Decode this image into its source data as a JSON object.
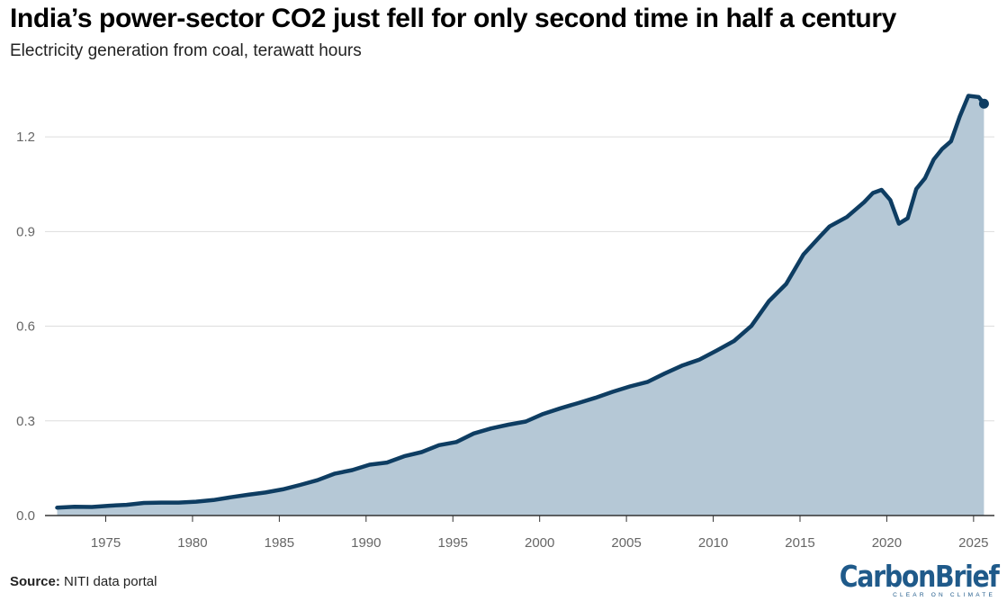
{
  "header": {
    "title": "India’s power-sector CO2 just fell for only second time in half a century",
    "subtitle": "Electricity generation from coal, terawatt hours"
  },
  "footer": {
    "source_label": "Source:",
    "source_text": "NITI data portal",
    "logo_text": "CarbonBrief",
    "logo_tagline": "CLEAR ON CLIMATE"
  },
  "colors": {
    "line": "#0e3d62",
    "area": "#b5c8d6",
    "grid": "#dddddd",
    "axis": "#333333"
  },
  "chart_data": {
    "type": "area",
    "title": "India’s power-sector CO2 just fell for only second time in half a century",
    "subtitle": "Electricity generation from coal, terawatt hours",
    "xlabel": "",
    "ylabel": "",
    "xlim": [
      1971.5,
      2026.2
    ],
    "ylim": [
      0,
      1.36
    ],
    "grid": true,
    "legend": "none",
    "y_ticks": [
      {
        "value": 0,
        "label": "0.0"
      },
      {
        "value": 0.3,
        "label": "0.3"
      },
      {
        "value": 0.6,
        "label": "0.6"
      },
      {
        "value": 0.9,
        "label": "0.9"
      },
      {
        "value": 1.2,
        "label": "1.2"
      }
    ],
    "x_ticks": [
      {
        "value": 1975,
        "label": "1975"
      },
      {
        "value": 1980,
        "label": "1980"
      },
      {
        "value": 1985,
        "label": "1985"
      },
      {
        "value": 1990,
        "label": "1990"
      },
      {
        "value": 1995,
        "label": "1995"
      },
      {
        "value": 2000,
        "label": "2000"
      },
      {
        "value": 2005,
        "label": "2005"
      },
      {
        "value": 2010,
        "label": "2010"
      },
      {
        "value": 2015,
        "label": "2015"
      },
      {
        "value": 2020,
        "label": "2020"
      },
      {
        "value": 2025,
        "label": "2025"
      }
    ],
    "series": [
      {
        "x": [
          1972.2,
          1973.2,
          1974.2,
          1975.2,
          1976.2,
          1977.2,
          1978.2,
          1979.2,
          1980.2,
          1981.2,
          1982.2,
          1983.2,
          1984.2,
          1985.2,
          1986.2,
          1987.2,
          1988.2,
          1989.2,
          1990.2,
          1991.2,
          1992.2,
          1993.2,
          1994.2,
          1995.2,
          1996.2,
          1997.2,
          1998.2,
          1999.2,
          2000.2,
          2001.2,
          2002.2,
          2003.2,
          2004.2,
          2005.2,
          2006.2,
          2007.2,
          2008.2,
          2009.2,
          2010.2,
          2011.2,
          2012.2,
          2013.2,
          2014.2,
          2015.2,
          2016.2,
          2016.7,
          2017.7,
          2018.7,
          2019.2,
          2019.7,
          2020.2,
          2020.7,
          2021.2,
          2021.7,
          2022.2,
          2022.7,
          2023.2,
          2023.7,
          2024.2,
          2024.7,
          2025.3
        ],
        "values": [
          0.025,
          0.028,
          0.027,
          0.031,
          0.034,
          0.04,
          0.041,
          0.041,
          0.044,
          0.049,
          0.058,
          0.066,
          0.073,
          0.083,
          0.097,
          0.112,
          0.133,
          0.144,
          0.161,
          0.168,
          0.188,
          0.201,
          0.223,
          0.233,
          0.26,
          0.276,
          0.288,
          0.298,
          0.322,
          0.34,
          0.356,
          0.373,
          0.392,
          0.409,
          0.423,
          0.45,
          0.475,
          0.494,
          0.523,
          0.553,
          0.601,
          0.679,
          0.734,
          0.827,
          0.887,
          0.916,
          0.946,
          0.993,
          1.022,
          1.032,
          1.0,
          0.925,
          0.942,
          1.035,
          1.069,
          1.128,
          1.162,
          1.186,
          1.264,
          1.33,
          1.326
        ]
      }
    ],
    "end_marker": {
      "x": 2025.6,
      "value": 1.305
    }
  }
}
